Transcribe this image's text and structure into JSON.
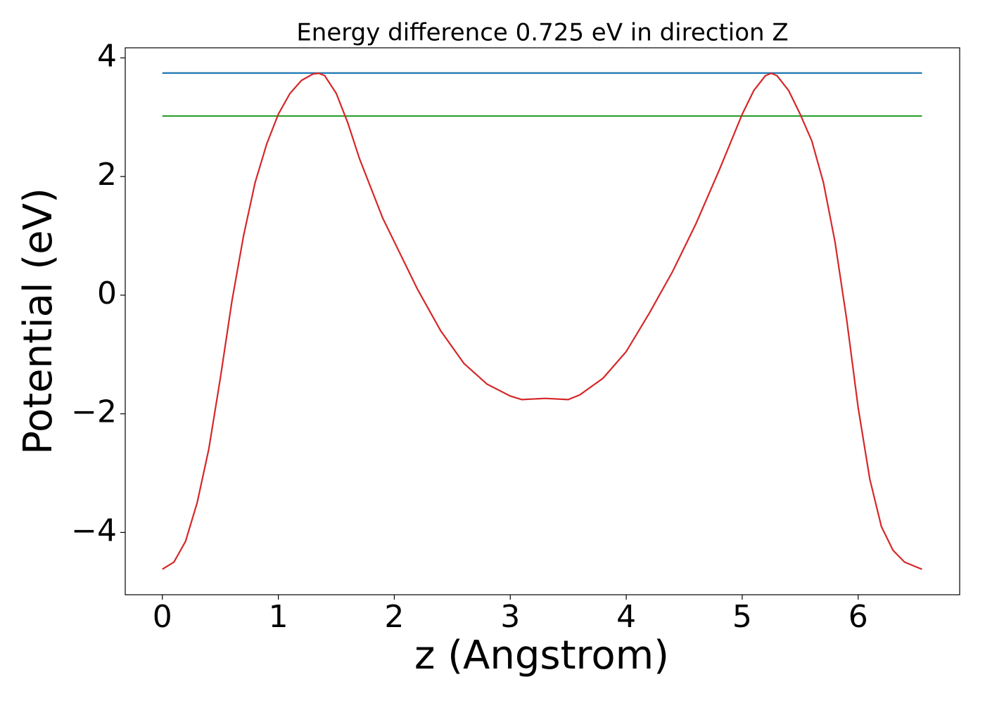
{
  "chart_data": {
    "type": "line",
    "title": "Energy difference 0.725 eV in direction Z",
    "xlabel": "z (Angstrom)",
    "ylabel": "Potential (eV)",
    "xlim": [
      -0.32,
      6.875
    ],
    "ylim": [
      -5.05,
      4.17
    ],
    "xticks": [
      0,
      1,
      2,
      3,
      4,
      5,
      6
    ],
    "yticks": [
      {
        "value": -4,
        "label": "−4"
      },
      {
        "value": -2,
        "label": "−2"
      },
      0,
      2,
      4
    ],
    "series": [
      {
        "color": "#d62728",
        "x": [
          0,
          0.1,
          0.2,
          0.3,
          0.4,
          0.5,
          0.6,
          0.7,
          0.8,
          0.9,
          1.0,
          1.1,
          1.2,
          1.3,
          1.35,
          1.4,
          1.5,
          1.6,
          1.7,
          1.8,
          1.9,
          2.0,
          2.2,
          2.4,
          2.6,
          2.8,
          3.0,
          3.1,
          3.3,
          3.5,
          3.6,
          3.8,
          4.0,
          4.2,
          4.4,
          4.6,
          4.8,
          5.0,
          5.1,
          5.2,
          5.25,
          5.3,
          5.4,
          5.5,
          5.6,
          5.7,
          5.8,
          5.9,
          6.0,
          6.1,
          6.2,
          6.3,
          6.4,
          6.55
        ],
        "values": [
          -4.62,
          -4.5,
          -4.15,
          -3.5,
          -2.6,
          -1.4,
          -0.1,
          1.0,
          1.9,
          2.55,
          3.05,
          3.4,
          3.62,
          3.73,
          3.74,
          3.7,
          3.4,
          2.9,
          2.3,
          1.8,
          1.3,
          0.9,
          0.1,
          -0.6,
          -1.15,
          -1.5,
          -1.7,
          -1.76,
          -1.74,
          -1.76,
          -1.68,
          -1.4,
          -0.95,
          -0.3,
          0.4,
          1.2,
          2.1,
          3.05,
          3.45,
          3.7,
          3.74,
          3.7,
          3.45,
          3.05,
          2.6,
          1.9,
          0.9,
          -0.4,
          -1.9,
          -3.1,
          -3.9,
          -4.3,
          -4.5,
          -4.62
        ]
      },
      {
        "color": "#1f77b4",
        "x": [
          0,
          6.55
        ],
        "values": [
          3.745,
          3.745
        ]
      },
      {
        "color": "#2ca02c",
        "x": [
          0,
          6.55
        ],
        "values": [
          3.02,
          3.02
        ]
      }
    ]
  }
}
